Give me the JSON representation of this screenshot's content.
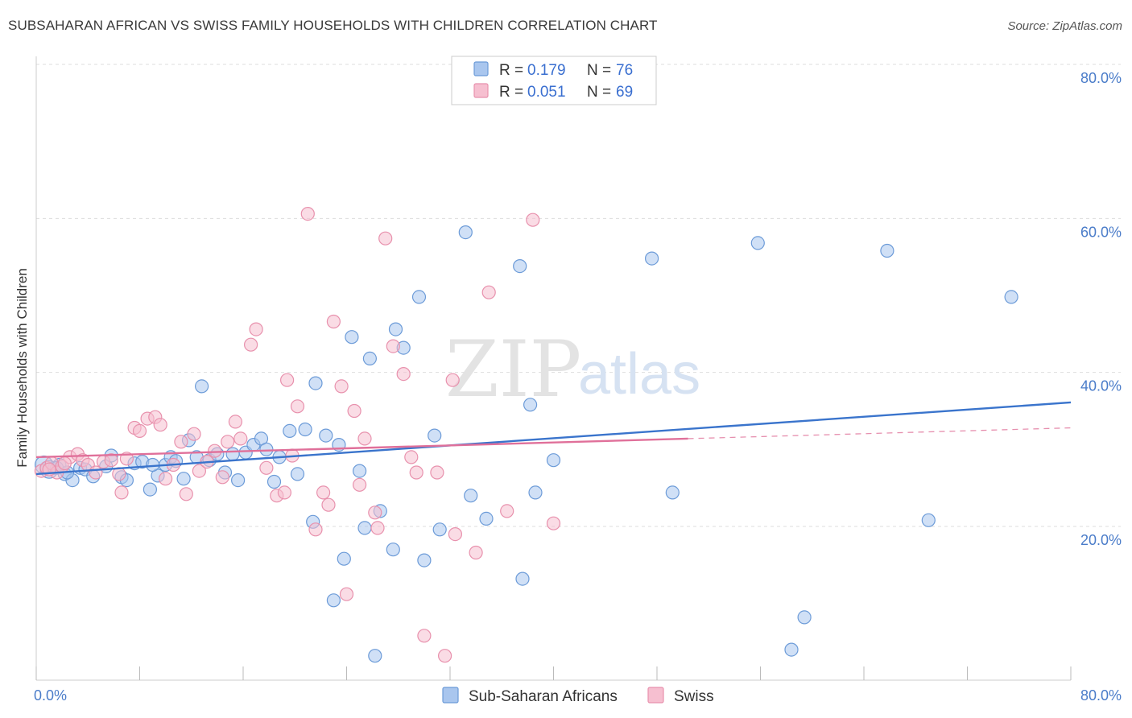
{
  "title": "SUBSAHARAN AFRICAN VS SWISS FAMILY HOUSEHOLDS WITH CHILDREN CORRELATION CHART",
  "source": "Source: ZipAtlas.com",
  "watermark": {
    "zip": "ZIP",
    "atlas": "atlas"
  },
  "chart_data": {
    "type": "scatter",
    "xlabel": "",
    "ylabel": "Family Households with Children",
    "xlim": [
      0,
      80
    ],
    "ylim": [
      0,
      83
    ],
    "x_tick_labels": [
      {
        "value": 0,
        "label": "0.0%"
      },
      {
        "value": 80,
        "label": "80.0%"
      }
    ],
    "y_tick_labels": [
      {
        "value": 20,
        "label": "20.0%"
      },
      {
        "value": 40,
        "label": "40.0%"
      },
      {
        "value": 60,
        "label": "60.0%"
      },
      {
        "value": 80,
        "label": "80.0%"
      }
    ],
    "x_minor_ticks": [
      0,
      8,
      16,
      24,
      32,
      40,
      48,
      56,
      64,
      72,
      80
    ],
    "grid": "horizontal dashed",
    "legend": {
      "placement": "top-center",
      "entries": [
        {
          "r_label": "R =",
          "r_value": "0.179",
          "n_label": "N =",
          "n_value": "76",
          "color": "#a9c6ee",
          "stroke": "#6c9bd8"
        },
        {
          "r_label": "R =",
          "r_value": "0.051",
          "n_label": "N =",
          "n_value": "69",
          "color": "#f6bfd0",
          "stroke": "#e891ad"
        }
      ]
    },
    "bottom_legend": [
      {
        "name": "Sub-Saharan Africans",
        "color": "#a9c6ee",
        "stroke": "#6c9bd8"
      },
      {
        "name": "Swiss",
        "color": "#f6bfd0",
        "stroke": "#e891ad"
      }
    ],
    "series": [
      {
        "name": "Sub-Saharan Africans",
        "fill": "#a9c6ee",
        "stroke": "#6c9bd8",
        "trend": {
          "x": [
            0,
            80
          ],
          "y": [
            26.8,
            36.1
          ],
          "color": "#3a74cc"
        },
        "points": [
          [
            0.6,
            28.0
          ],
          [
            1.0,
            27.4
          ],
          [
            1.4,
            27.6
          ],
          [
            1.8,
            28.0
          ],
          [
            2.2,
            26.8
          ],
          [
            2.8,
            26.0
          ],
          [
            3.4,
            27.6
          ],
          [
            3.8,
            27.4
          ],
          [
            4.4,
            26.5
          ],
          [
            5.4,
            27.8
          ],
          [
            5.8,
            29.2
          ],
          [
            6.6,
            26.4
          ],
          [
            7.0,
            26.0
          ],
          [
            7.6,
            28.2
          ],
          [
            8.2,
            28.4
          ],
          [
            8.8,
            24.8
          ],
          [
            9.4,
            26.6
          ],
          [
            10.0,
            28.0
          ],
          [
            10.4,
            29.0
          ],
          [
            10.8,
            28.5
          ],
          [
            11.4,
            26.2
          ],
          [
            11.8,
            31.2
          ],
          [
            12.4,
            29.0
          ],
          [
            12.8,
            38.2
          ],
          [
            13.4,
            28.6
          ],
          [
            14.0,
            29.4
          ],
          [
            14.6,
            27.0
          ],
          [
            15.2,
            29.4
          ],
          [
            15.6,
            26.0
          ],
          [
            16.2,
            29.6
          ],
          [
            16.8,
            30.6
          ],
          [
            17.4,
            31.4
          ],
          [
            17.8,
            30.0
          ],
          [
            18.4,
            25.8
          ],
          [
            18.8,
            29.0
          ],
          [
            19.6,
            32.4
          ],
          [
            20.2,
            26.8
          ],
          [
            20.8,
            32.6
          ],
          [
            21.4,
            20.6
          ],
          [
            21.6,
            38.6
          ],
          [
            22.4,
            31.8
          ],
          [
            23.0,
            10.4
          ],
          [
            23.4,
            30.6
          ],
          [
            23.8,
            15.8
          ],
          [
            24.4,
            44.6
          ],
          [
            25.0,
            27.2
          ],
          [
            25.4,
            19.8
          ],
          [
            25.8,
            41.8
          ],
          [
            26.2,
            3.2
          ],
          [
            26.6,
            22.0
          ],
          [
            27.6,
            17.0
          ],
          [
            27.8,
            45.6
          ],
          [
            28.4,
            43.2
          ],
          [
            29.6,
            49.8
          ],
          [
            30.0,
            15.6
          ],
          [
            30.8,
            31.8
          ],
          [
            31.2,
            19.6
          ],
          [
            33.2,
            58.2
          ],
          [
            33.6,
            24.0
          ],
          [
            34.8,
            21.0
          ],
          [
            37.4,
            53.8
          ],
          [
            37.6,
            13.2
          ],
          [
            38.6,
            24.4
          ],
          [
            38.2,
            35.8
          ],
          [
            40.0,
            28.6
          ],
          [
            47.6,
            54.8
          ],
          [
            49.2,
            24.4
          ],
          [
            55.8,
            56.8
          ],
          [
            58.4,
            4.0
          ],
          [
            59.4,
            8.2
          ],
          [
            65.8,
            55.8
          ],
          [
            69.0,
            20.8
          ],
          [
            75.4,
            49.8
          ],
          [
            1.6,
            27.6
          ],
          [
            2.4,
            27.0
          ],
          [
            9.0,
            28.0
          ]
        ]
      },
      {
        "name": "Swiss",
        "fill": "#f6bfd0",
        "stroke": "#e891ad",
        "trend": {
          "x": [
            0,
            50.4
          ],
          "y": [
            29.0,
            31.4
          ],
          "color": "#e0709a"
        },
        "trend_ext": {
          "x": [
            50.4,
            80
          ],
          "y": [
            31.4,
            32.8
          ],
          "color": "#e68fae"
        },
        "points": [
          [
            0.4,
            27.2
          ],
          [
            0.8,
            27.6
          ],
          [
            1.2,
            28.2
          ],
          [
            1.6,
            27.0
          ],
          [
            2.0,
            27.8
          ],
          [
            2.6,
            29.0
          ],
          [
            3.2,
            29.4
          ],
          [
            3.6,
            28.6
          ],
          [
            4.0,
            28.0
          ],
          [
            4.6,
            27.0
          ],
          [
            5.2,
            28.4
          ],
          [
            5.8,
            28.6
          ],
          [
            6.4,
            26.8
          ],
          [
            6.6,
            24.4
          ],
          [
            7.0,
            28.8
          ],
          [
            7.6,
            32.8
          ],
          [
            8.0,
            32.4
          ],
          [
            8.6,
            34.0
          ],
          [
            9.2,
            34.2
          ],
          [
            9.6,
            33.2
          ],
          [
            10.0,
            26.2
          ],
          [
            10.6,
            28.0
          ],
          [
            11.2,
            31.0
          ],
          [
            11.6,
            24.2
          ],
          [
            12.2,
            32.0
          ],
          [
            12.6,
            27.2
          ],
          [
            13.2,
            28.4
          ],
          [
            13.8,
            29.8
          ],
          [
            14.4,
            26.4
          ],
          [
            14.8,
            31.0
          ],
          [
            15.4,
            33.6
          ],
          [
            15.8,
            31.4
          ],
          [
            16.6,
            43.6
          ],
          [
            17.0,
            45.6
          ],
          [
            17.8,
            27.6
          ],
          [
            18.6,
            24.0
          ],
          [
            19.2,
            24.4
          ],
          [
            19.4,
            39.0
          ],
          [
            19.8,
            29.2
          ],
          [
            20.2,
            35.6
          ],
          [
            21.0,
            60.6
          ],
          [
            21.6,
            19.6
          ],
          [
            22.2,
            24.4
          ],
          [
            22.6,
            22.8
          ],
          [
            23.0,
            46.6
          ],
          [
            23.6,
            38.2
          ],
          [
            24.0,
            11.2
          ],
          [
            24.6,
            35.0
          ],
          [
            25.0,
            25.4
          ],
          [
            25.4,
            31.4
          ],
          [
            26.2,
            21.8
          ],
          [
            26.4,
            19.8
          ],
          [
            27.0,
            57.4
          ],
          [
            27.6,
            43.4
          ],
          [
            28.4,
            39.8
          ],
          [
            29.0,
            29.0
          ],
          [
            29.4,
            27.0
          ],
          [
            30.0,
            5.8
          ],
          [
            31.0,
            27.0
          ],
          [
            31.6,
            3.2
          ],
          [
            32.2,
            39.0
          ],
          [
            32.4,
            19.0
          ],
          [
            34.0,
            16.6
          ],
          [
            35.0,
            50.4
          ],
          [
            36.4,
            22.0
          ],
          [
            38.4,
            59.8
          ],
          [
            40.0,
            20.4
          ],
          [
            1.0,
            27.4
          ],
          [
            2.2,
            28.2
          ]
        ]
      }
    ]
  }
}
